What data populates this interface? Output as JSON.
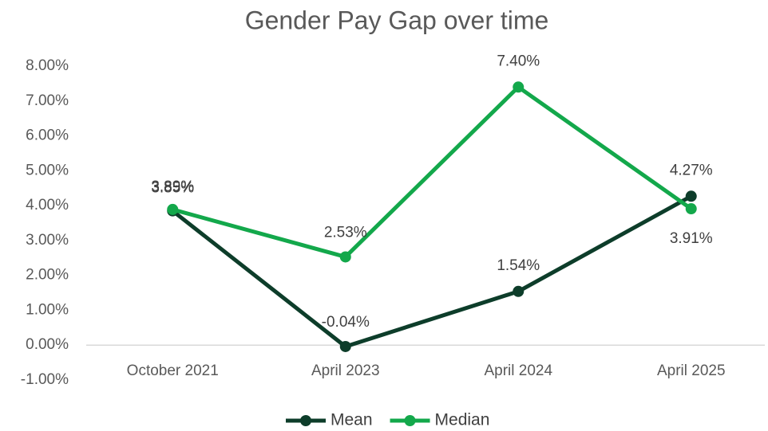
{
  "chart_data": {
    "type": "line",
    "title": "Gender Pay Gap over time",
    "categories": [
      "October 2021",
      "April 2023",
      "April 2024",
      "April 2025"
    ],
    "series": [
      {
        "name": "Mean",
        "color": "#0d3d2a",
        "values": [
          3.85,
          -0.04,
          1.54,
          4.27
        ],
        "value_labels": [
          "3.85%",
          "-0.04%",
          "1.54%",
          "4.27%"
        ]
      },
      {
        "name": "Median",
        "color": "#13a84b",
        "values": [
          3.89,
          2.53,
          7.4,
          3.91
        ],
        "value_labels": [
          "3.89%",
          "2.53%",
          "7.40%",
          "3.91%"
        ]
      }
    ],
    "ylim": [
      -1,
      8
    ],
    "yticks": [
      {
        "value": -1,
        "label": "-1.00%"
      },
      {
        "value": 0,
        "label": "0.00%"
      },
      {
        "value": 1,
        "label": "1.00%"
      },
      {
        "value": 2,
        "label": "2.00%"
      },
      {
        "value": 3,
        "label": "3.00%"
      },
      {
        "value": 4,
        "label": "4.00%"
      },
      {
        "value": 5,
        "label": "5.00%"
      },
      {
        "value": 6,
        "label": "6.00%"
      },
      {
        "value": 7,
        "label": "7.00%"
      },
      {
        "value": 8,
        "label": "8.00%"
      }
    ],
    "legend": "bottom"
  }
}
